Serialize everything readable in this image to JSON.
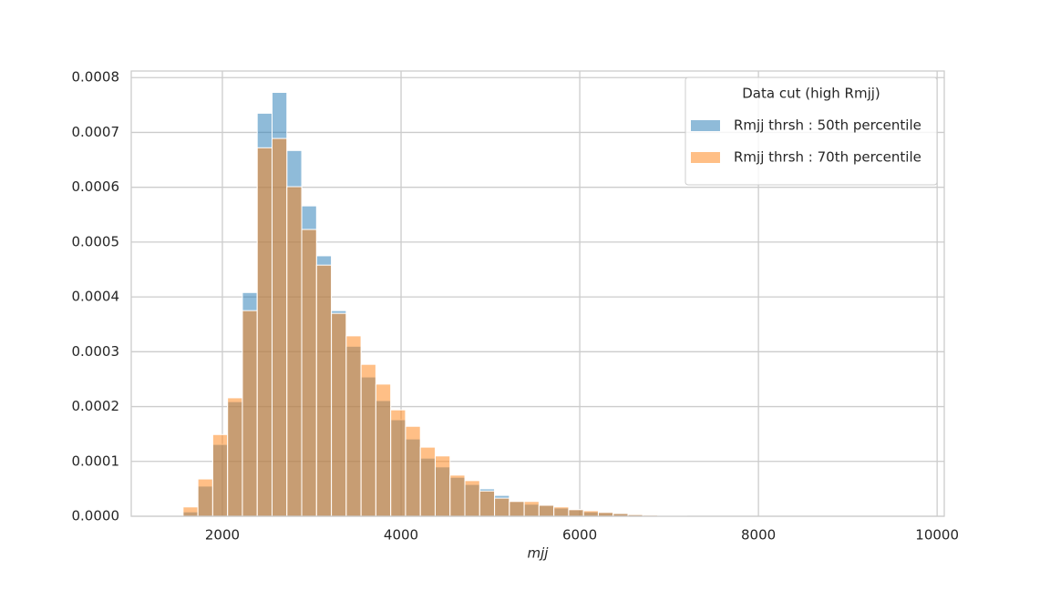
{
  "chart_data": {
    "type": "histogram",
    "x_label": "mjj",
    "legend_title": "Data cut (high Rmjj)",
    "legend_position": "upper right",
    "grid": true,
    "xlim": [
      980,
      10080
    ],
    "ylim": [
      0,
      0.000812
    ],
    "xticks": [
      2000,
      4000,
      6000,
      8000,
      10000
    ],
    "yticks": [
      {
        "value": 0,
        "label": "0.0000"
      },
      {
        "value": 0.0001,
        "label": "0.0001"
      },
      {
        "value": 0.0002,
        "label": "0.0002"
      },
      {
        "value": 0.0003,
        "label": "0.0003"
      },
      {
        "value": 0.0004,
        "label": "0.0004"
      },
      {
        "value": 0.0005,
        "label": "0.0005"
      },
      {
        "value": 0.0006,
        "label": "0.0006"
      },
      {
        "value": 0.0007,
        "label": "0.0007"
      },
      {
        "value": 0.0008,
        "label": "0.0008"
      }
    ],
    "bins": [
      1560,
      1726,
      1892,
      2058,
      2224,
      2390,
      2556,
      2722,
      2888,
      3054,
      3220,
      3386,
      3552,
      3718,
      3884,
      4050,
      4216,
      4382,
      4548,
      4714,
      4880,
      5046,
      5212,
      5378,
      5544,
      5710,
      5876,
      6042,
      6208,
      6374,
      6540,
      6706,
      6872,
      7038,
      7204,
      7370,
      7536,
      7702,
      7868,
      8034,
      8200,
      8366,
      8532,
      8698,
      8864,
      9030,
      9196,
      9362,
      9528,
      9694,
      9860
    ],
    "series": [
      {
        "name": "Rmjj thrsh : 50th percentile",
        "color": "#1f77b4",
        "values": [
          8e-06,
          5.5e-05,
          0.000131,
          0.000209,
          0.000408,
          0.000735,
          0.000773,
          0.000667,
          0.000566,
          0.000475,
          0.000375,
          0.00031,
          0.000254,
          0.000211,
          0.000176,
          0.000141,
          0.000106,
          9e-05,
          7.1e-05,
          5.8e-05,
          5e-05,
          3.8e-05,
          2.7e-05,
          2.2e-05,
          2e-05,
          1.5e-05,
          1.2e-05,
          8e-06,
          7e-06,
          5e-06,
          3e-06,
          2e-06,
          1e-06,
          1e-06,
          0,
          0,
          0,
          0,
          0,
          0,
          0,
          0,
          0,
          0,
          0,
          0,
          0,
          0,
          0,
          0
        ]
      },
      {
        "name": "Rmjj thrsh : 70th percentile",
        "color": "#ff7f0e",
        "values": [
          1.7e-05,
          6.8e-05,
          0.000149,
          0.000216,
          0.000375,
          0.000672,
          0.000689,
          0.000601,
          0.000523,
          0.000458,
          0.00037,
          0.000329,
          0.000277,
          0.000241,
          0.000194,
          0.000164,
          0.000126,
          0.00011,
          7.5e-05,
          6.5e-05,
          4.6e-05,
          3.3e-05,
          2.7e-05,
          2.7e-05,
          2e-05,
          1.7e-05,
          1.2e-05,
          1e-05,
          7e-06,
          5e-06,
          3e-06,
          2e-06,
          1e-06,
          1e-06,
          0,
          0,
          0,
          0,
          0,
          0,
          0,
          0,
          0,
          0,
          0,
          0,
          0,
          0,
          0,
          0
        ]
      }
    ]
  }
}
